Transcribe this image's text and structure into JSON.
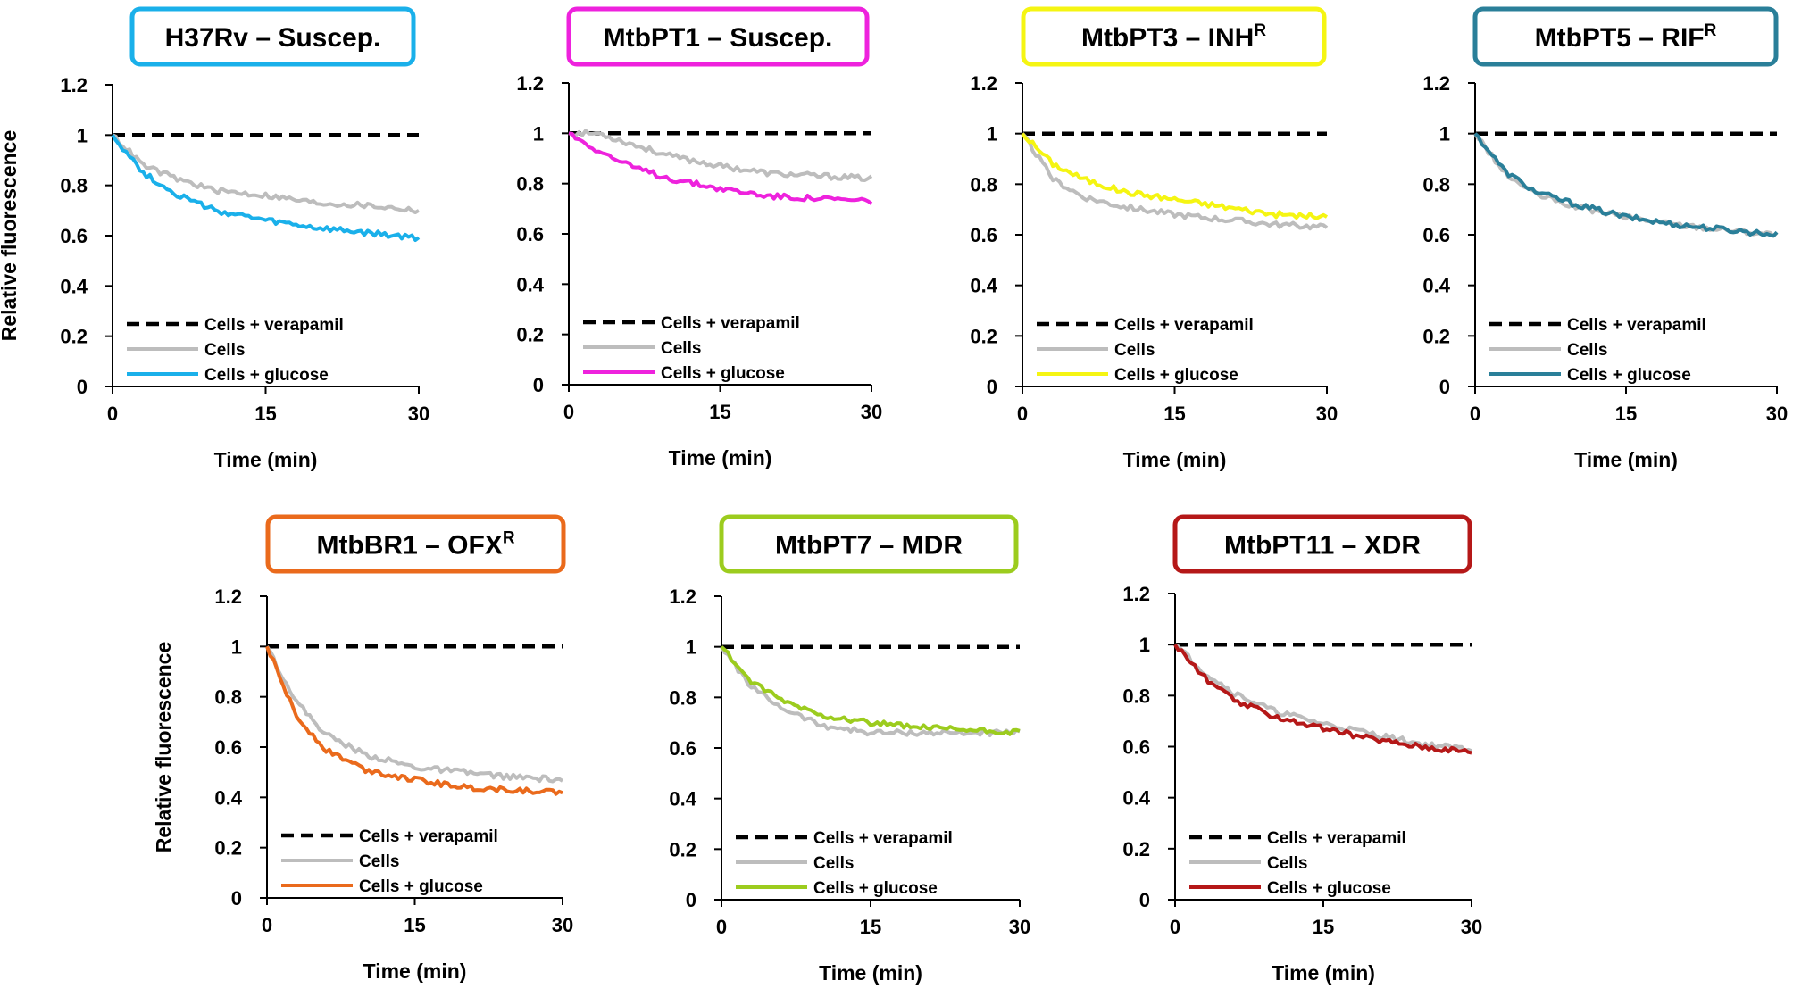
{
  "figure": {
    "ylabel": "Relative fluorescence",
    "xlabel": "Time (min)",
    "legend": [
      "Cells + verapamil",
      "Cells",
      "Cells + glucose"
    ],
    "x_ticks": [
      "0",
      "15",
      "30"
    ],
    "y_ticks": [
      "0",
      "0.2",
      "0.4",
      "0.6",
      "0.8",
      "1",
      "1.2"
    ],
    "colors": {
      "verapamil": "#000000",
      "cells": "#bdbdbd"
    }
  },
  "chart_data": [
    {
      "type": "line",
      "title": "H37Rv – Suscep.",
      "title_sup": "",
      "color": "#1ab0ea",
      "xlabel": "Time (min)",
      "ylabel": "Relative fluorescence",
      "xlim": [
        0,
        30
      ],
      "ylim": [
        0,
        1.2
      ],
      "series": [
        {
          "name": "Cells + verapamil",
          "x": [
            0,
            30
          ],
          "values": [
            1.0,
            1.0
          ]
        },
        {
          "name": "Cells",
          "x": [
            0,
            3,
            6,
            10,
            15,
            20,
            25,
            30
          ],
          "values": [
            1.0,
            0.88,
            0.83,
            0.78,
            0.76,
            0.73,
            0.72,
            0.7
          ]
        },
        {
          "name": "Cells + glucose",
          "x": [
            0,
            3,
            6,
            10,
            15,
            20,
            25,
            30
          ],
          "values": [
            1.0,
            0.85,
            0.77,
            0.7,
            0.66,
            0.63,
            0.61,
            0.59
          ]
        }
      ]
    },
    {
      "type": "line",
      "title": "MtbPT1 – Suscep.",
      "title_sup": "",
      "color": "#ee22dd",
      "xlabel": "Time (min)",
      "ylabel": "Relative fluorescence",
      "xlim": [
        0,
        30
      ],
      "ylim": [
        0,
        1.2
      ],
      "series": [
        {
          "name": "Cells + verapamil",
          "x": [
            0,
            30
          ],
          "values": [
            1.0,
            1.0
          ]
        },
        {
          "name": "Cells",
          "x": [
            0,
            3,
            6,
            10,
            15,
            20,
            25,
            30
          ],
          "values": [
            1.0,
            1.0,
            0.96,
            0.91,
            0.87,
            0.84,
            0.83,
            0.82
          ]
        },
        {
          "name": "Cells + glucose",
          "x": [
            0,
            3,
            6,
            10,
            15,
            20,
            25,
            30
          ],
          "values": [
            1.0,
            0.93,
            0.87,
            0.82,
            0.78,
            0.75,
            0.74,
            0.73
          ]
        }
      ]
    },
    {
      "type": "line",
      "title": "MtbPT3 – INH",
      "title_sup": "R",
      "color": "#f5f512",
      "xlabel": "Time (min)",
      "ylabel": "Relative fluorescence",
      "xlim": [
        0,
        30
      ],
      "ylim": [
        0,
        1.2
      ],
      "series": [
        {
          "name": "Cells + verapamil",
          "x": [
            0,
            30
          ],
          "values": [
            1.0,
            1.0
          ]
        },
        {
          "name": "Cells",
          "x": [
            0,
            3,
            6,
            10,
            15,
            20,
            25,
            30
          ],
          "values": [
            1.0,
            0.82,
            0.75,
            0.71,
            0.68,
            0.66,
            0.64,
            0.63
          ]
        },
        {
          "name": "Cells + glucose",
          "x": [
            0,
            3,
            6,
            10,
            15,
            20,
            25,
            30
          ],
          "values": [
            1.0,
            0.88,
            0.82,
            0.77,
            0.74,
            0.71,
            0.68,
            0.67
          ]
        }
      ]
    },
    {
      "type": "line",
      "title": "MtbPT5 – RIF",
      "title_sup": "R",
      "color": "#2a7f99",
      "xlabel": "Time (min)",
      "ylabel": "Relative fluorescence",
      "xlim": [
        0,
        30
      ],
      "ylim": [
        0,
        1.2
      ],
      "series": [
        {
          "name": "Cells + verapamil",
          "x": [
            0,
            30
          ],
          "values": [
            1.0,
            1.0
          ]
        },
        {
          "name": "Cells",
          "x": [
            0,
            3,
            6,
            10,
            15,
            20,
            25,
            30
          ],
          "values": [
            1.0,
            0.84,
            0.76,
            0.71,
            0.67,
            0.64,
            0.62,
            0.6
          ]
        },
        {
          "name": "Cells + glucose",
          "x": [
            0,
            3,
            6,
            10,
            15,
            20,
            25,
            30
          ],
          "values": [
            1.0,
            0.85,
            0.77,
            0.72,
            0.67,
            0.64,
            0.62,
            0.6
          ]
        }
      ]
    },
    {
      "type": "line",
      "title": "MtbBR1 – OFX",
      "title_sup": "R",
      "color": "#ea6a1c",
      "xlabel": "Time (min)",
      "ylabel": "Relative fluorescence",
      "xlim": [
        0,
        30
      ],
      "ylim": [
        0,
        1.2
      ],
      "series": [
        {
          "name": "Cells + verapamil",
          "x": [
            0,
            30
          ],
          "values": [
            1.0,
            1.0
          ]
        },
        {
          "name": "Cells",
          "x": [
            0,
            3,
            6,
            10,
            15,
            20,
            25,
            30
          ],
          "values": [
            1.0,
            0.78,
            0.65,
            0.57,
            0.52,
            0.5,
            0.48,
            0.47
          ]
        },
        {
          "name": "Cells + glucose",
          "x": [
            0,
            3,
            6,
            10,
            15,
            20,
            25,
            30
          ],
          "values": [
            1.0,
            0.72,
            0.59,
            0.51,
            0.47,
            0.44,
            0.43,
            0.42
          ]
        }
      ]
    },
    {
      "type": "line",
      "title": "MtbPT7 – MDR",
      "title_sup": "",
      "color": "#9ccc1e",
      "xlabel": "Time (min)",
      "ylabel": "Relative fluorescence",
      "xlim": [
        0,
        30
      ],
      "ylim": [
        0,
        1.2
      ],
      "series": [
        {
          "name": "Cells + verapamil",
          "x": [
            0,
            30
          ],
          "values": [
            1.0,
            1.0
          ]
        },
        {
          "name": "Cells",
          "x": [
            0,
            3,
            6,
            10,
            15,
            20,
            25,
            30
          ],
          "values": [
            1.0,
            0.84,
            0.76,
            0.69,
            0.66,
            0.66,
            0.66,
            0.66
          ]
        },
        {
          "name": "Cells + glucose",
          "x": [
            0,
            3,
            6,
            10,
            15,
            20,
            25,
            30
          ],
          "values": [
            1.0,
            0.86,
            0.79,
            0.73,
            0.7,
            0.68,
            0.67,
            0.66
          ]
        }
      ]
    },
    {
      "type": "line",
      "title": "MtbPT11 – XDR",
      "title_sup": "",
      "color": "#b51818",
      "xlabel": "Time (min)",
      "ylabel": "Relative fluorescence",
      "xlim": [
        0,
        30
      ],
      "ylim": [
        0,
        1.2
      ],
      "series": [
        {
          "name": "Cells + verapamil",
          "x": [
            0,
            30
          ],
          "values": [
            1.0,
            1.0
          ]
        },
        {
          "name": "Cells",
          "x": [
            0,
            3,
            6,
            10,
            15,
            20,
            25,
            30
          ],
          "values": [
            1.0,
            0.89,
            0.81,
            0.74,
            0.69,
            0.65,
            0.61,
            0.59
          ]
        },
        {
          "name": "Cells + glucose",
          "x": [
            0,
            3,
            6,
            10,
            15,
            20,
            25,
            30
          ],
          "values": [
            1.0,
            0.87,
            0.78,
            0.72,
            0.67,
            0.63,
            0.6,
            0.58
          ]
        }
      ]
    }
  ]
}
